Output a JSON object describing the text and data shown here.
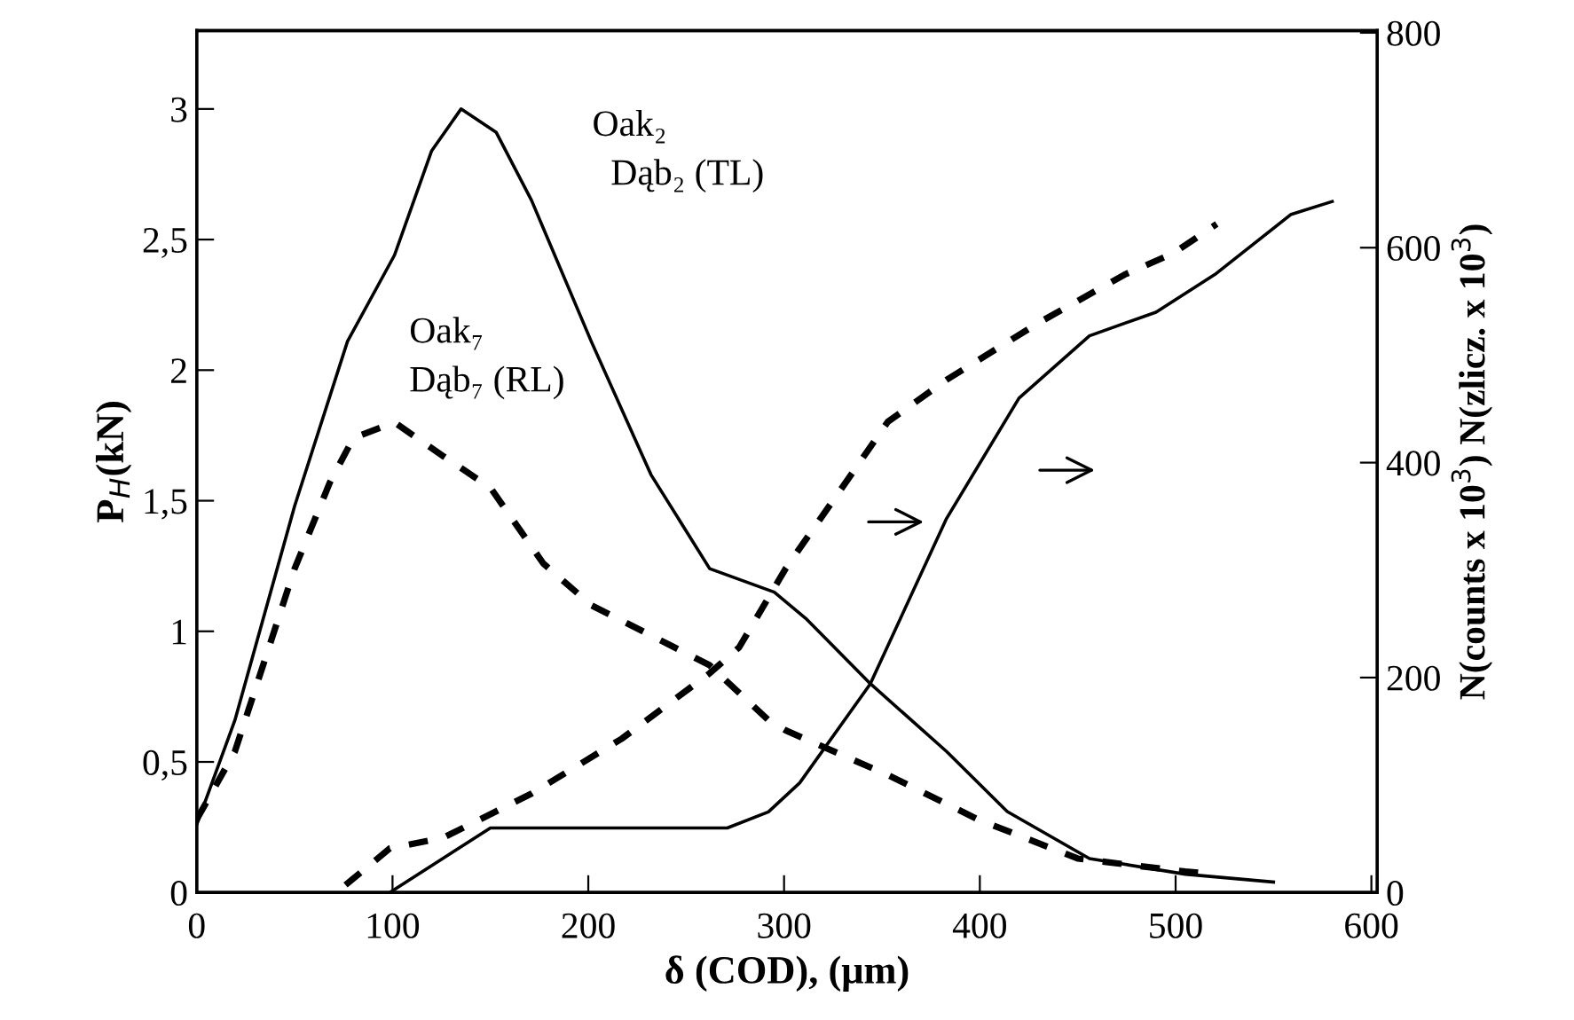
{
  "chart_data": {
    "type": "line",
    "xlabel": "δ (COD), (μm)",
    "ylabel": "P$_{H}$(kN)",
    "y2label": "N(counts x 10$^{3}$) N(zlicz. x 10$^{3}$)",
    "xlim": [
      0,
      603
    ],
    "xticks": [
      0,
      100,
      200,
      300,
      400,
      500,
      600
    ],
    "ylim": [
      0,
      3.3
    ],
    "yticks": [
      0,
      {
        "value": 0.5,
        "label": "0,5"
      },
      1,
      {
        "value": 1.5,
        "label": "1,5"
      },
      2,
      {
        "value": 2.5,
        "label": "2,5"
      },
      3
    ],
    "y2lim": [
      0,
      802
    ],
    "y2ticks": [
      0,
      200,
      400,
      600,
      800
    ],
    "grid": false,
    "legend": false,
    "marker": "none",
    "series": [
      {
        "color": "#000000",
        "line_style": "solid",
        "x": [
          0,
          19.5,
          50,
          77,
          101,
          120,
          135,
          153,
          171,
          201.5,
          232,
          262,
          295,
          311,
          344,
          383,
          414,
          456,
          505,
          550
        ],
        "values": [
          0.26,
          0.66,
          1.48,
          2.11,
          2.44,
          2.84,
          3.0,
          2.91,
          2.65,
          2.11,
          1.6,
          1.24,
          1.15,
          1.05,
          0.8,
          0.54,
          0.31,
          0.13,
          0.07,
          0.04
        ]
      },
      {
        "color": "#000000",
        "line_style": "dashed",
        "x": [
          0,
          19.5,
          50,
          68,
          80,
          101,
          126,
          150,
          177,
          201.5,
          241,
          262,
          292,
          301,
          353,
          399,
          450,
          505,
          520
        ],
        "values": [
          0.28,
          0.54,
          1.24,
          1.57,
          1.74,
          1.8,
          1.67,
          1.55,
          1.26,
          1.1,
          0.95,
          0.87,
          0.66,
          0.62,
          0.45,
          0.28,
          0.13,
          0.08,
          0.07
        ]
      },
      {
        "color": "#000000",
        "line_style": "solid",
        "axis": "y2",
        "x": [
          98.6,
          150,
          271,
          292,
          308,
          344,
          383,
          420,
          456,
          490,
          520,
          559,
          580
        ],
        "values": [
          0,
          60,
          60,
          75,
          102,
          194,
          348,
          460,
          518,
          540,
          575,
          631,
          643
        ]
      },
      {
        "color": "#000000",
        "line_style": "dashed",
        "axis": "y2",
        "x": [
          76,
          98.6,
          126,
          171,
          217,
          262,
          277,
          301,
          329,
          353,
          383,
          429,
          474,
          499,
          521
        ],
        "values": [
          7,
          41,
          51,
          92,
          143,
          204,
          228,
          302,
          375,
          438,
          477,
          529,
          575,
          595,
          622
        ]
      }
    ],
    "annotations": [
      "Oak₂\n  Dąb₂ (TL)",
      "Oak₇\nDąb₇ (RL)"
    ]
  }
}
